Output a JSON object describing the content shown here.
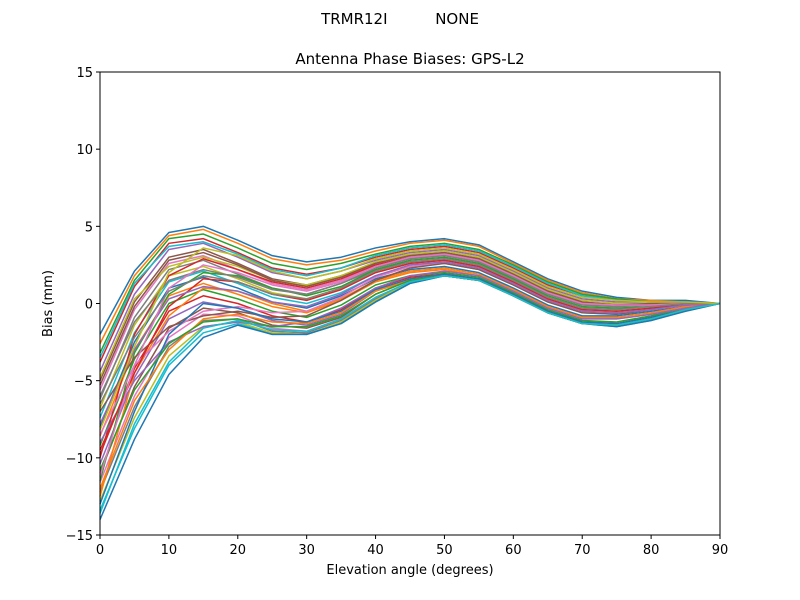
{
  "figure": {
    "suptitle": "TRMR12I          NONE"
  },
  "chart_data": {
    "type": "line",
    "title": "Antenna Phase Biases: GPS-L2",
    "xlabel": "Elevation angle (degrees)",
    "ylabel": "Bias (mm)",
    "xlim": [
      0,
      90
    ],
    "ylim": [
      -15,
      15
    ],
    "xticks": [
      0,
      10,
      20,
      30,
      40,
      50,
      60,
      70,
      80,
      90
    ],
    "yticks": [
      -15,
      -10,
      -5,
      0,
      5,
      10,
      15
    ],
    "xtick_labels": [
      "0",
      "10",
      "20",
      "30",
      "40",
      "50",
      "60",
      "70",
      "80",
      "90"
    ],
    "ytick_labels": [
      "−15",
      "−10",
      "−5",
      "0",
      "5",
      "10",
      "15"
    ],
    "grid": false,
    "legend": "none",
    "x": [
      0,
      5,
      10,
      15,
      20,
      25,
      30,
      35,
      40,
      45,
      50,
      55,
      60,
      65,
      70,
      75,
      80,
      85,
      90
    ],
    "colors": [
      "#1f77b4",
      "#ff7f0e",
      "#2ca02c",
      "#d62728",
      "#9467bd",
      "#8c564b",
      "#e377c2",
      "#7f7f7f",
      "#bcbd22",
      "#17becf"
    ],
    "series": [
      {
        "values": [
          -2.0,
          2.1,
          4.6,
          5.0,
          4.1,
          3.1,
          2.7,
          3.0,
          3.6,
          4.0,
          4.2,
          3.8,
          2.7,
          1.6,
          0.8,
          0.4,
          0.2,
          0.2,
          0.0
        ]
      },
      {
        "values": [
          -2.6,
          1.8,
          4.4,
          4.8,
          3.9,
          2.9,
          2.5,
          2.8,
          3.4,
          3.9,
          4.1,
          3.7,
          2.6,
          1.5,
          0.7,
          0.3,
          0.2,
          0.1,
          0.0
        ]
      },
      {
        "values": [
          -3.2,
          1.5,
          4.2,
          4.5,
          3.6,
          2.6,
          2.2,
          2.6,
          3.2,
          3.7,
          3.9,
          3.5,
          2.5,
          1.4,
          0.6,
          0.3,
          0.1,
          0.1,
          0.0
        ]
      },
      {
        "values": [
          -3.8,
          1.1,
          3.9,
          4.2,
          3.3,
          2.3,
          1.9,
          2.3,
          3.0,
          3.5,
          3.7,
          3.3,
          2.3,
          1.2,
          0.5,
          0.2,
          0.1,
          0.1,
          0.0
        ]
      },
      {
        "values": [
          -4.4,
          0.6,
          3.5,
          3.9,
          3.0,
          2.0,
          1.6,
          2.1,
          2.8,
          3.3,
          3.5,
          3.1,
          2.1,
          1.0,
          0.3,
          0.1,
          0.1,
          0.1,
          0.0
        ]
      },
      {
        "values": [
          -5.0,
          0.1,
          3.0,
          3.5,
          2.6,
          1.6,
          1.2,
          1.8,
          2.6,
          3.1,
          3.3,
          2.9,
          1.9,
          0.8,
          0.1,
          -0.1,
          0.0,
          0.1,
          0.0
        ]
      },
      {
        "values": [
          -5.6,
          -0.4,
          2.6,
          3.1,
          2.2,
          1.3,
          0.9,
          1.5,
          2.4,
          2.9,
          3.1,
          2.7,
          1.7,
          0.6,
          -0.1,
          -0.2,
          -0.1,
          0.0,
          0.0
        ]
      },
      {
        "values": [
          -6.2,
          -0.9,
          2.2,
          2.8,
          1.9,
          1.0,
          0.6,
          1.3,
          2.2,
          2.7,
          2.9,
          2.5,
          1.5,
          0.4,
          -0.3,
          -0.4,
          -0.2,
          0.0,
          0.0
        ]
      },
      {
        "values": [
          -6.8,
          -1.4,
          1.8,
          2.4,
          1.6,
          0.7,
          0.3,
          1.0,
          2.0,
          2.6,
          2.8,
          2.4,
          1.4,
          0.3,
          -0.4,
          -0.5,
          -0.3,
          -0.1,
          0.0
        ]
      },
      {
        "values": [
          -7.4,
          -1.9,
          1.4,
          2.1,
          1.3,
          0.4,
          0.0,
          0.7,
          1.8,
          2.4,
          2.6,
          2.2,
          1.2,
          0.1,
          -0.6,
          -0.7,
          -0.4,
          -0.1,
          0.0
        ]
      },
      {
        "values": [
          -8.0,
          -2.5,
          1.0,
          1.7,
          1.0,
          0.1,
          -0.3,
          0.5,
          1.6,
          2.2,
          2.4,
          2.0,
          1.0,
          -0.1,
          -0.8,
          -0.8,
          -0.5,
          -0.2,
          0.0
        ]
      },
      {
        "values": [
          -8.6,
          -3.0,
          0.5,
          1.3,
          0.6,
          -0.2,
          -0.6,
          0.2,
          1.4,
          2.0,
          2.2,
          1.8,
          0.8,
          -0.3,
          -1.0,
          -1.0,
          -0.7,
          -0.3,
          0.0
        ]
      },
      {
        "values": [
          -9.2,
          -3.6,
          0.0,
          0.9,
          0.3,
          -0.5,
          -0.9,
          -0.1,
          1.2,
          1.8,
          2.0,
          1.7,
          0.7,
          -0.4,
          -1.1,
          -1.2,
          -0.8,
          -0.3,
          0.0
        ]
      },
      {
        "values": [
          -9.8,
          -4.2,
          -0.5,
          0.5,
          0.0,
          -0.8,
          -1.2,
          -0.4,
          1.0,
          1.7,
          1.9,
          1.6,
          0.6,
          -0.5,
          -1.2,
          -1.3,
          -0.9,
          -0.4,
          0.0
        ]
      },
      {
        "values": [
          -10.4,
          -4.8,
          -1.0,
          0.1,
          -0.3,
          -1.1,
          -1.4,
          -0.7,
          0.8,
          1.6,
          1.8,
          1.5,
          0.5,
          -0.6,
          -1.3,
          -1.4,
          -1.0,
          -0.4,
          0.0
        ]
      },
      {
        "values": [
          -11.0,
          -5.4,
          -1.6,
          -0.3,
          -0.6,
          -1.4,
          -1.6,
          -0.9,
          0.6,
          1.5,
          1.8,
          1.5,
          0.5,
          -0.6,
          -1.3,
          -1.4,
          -1.0,
          -0.4,
          0.0
        ]
      },
      {
        "values": [
          -11.6,
          -6.0,
          -2.2,
          -0.7,
          -0.8,
          -1.6,
          -1.8,
          -1.0,
          0.4,
          1.4,
          1.8,
          1.5,
          0.5,
          -0.6,
          -1.3,
          -1.4,
          -1.0,
          -0.4,
          0.0
        ]
      },
      {
        "values": [
          -12.2,
          -6.7,
          -2.8,
          -1.1,
          -1.0,
          -1.8,
          -1.9,
          -1.1,
          0.3,
          1.4,
          1.8,
          1.5,
          0.5,
          -0.6,
          -1.3,
          -1.4,
          -1.0,
          -0.4,
          0.0
        ]
      },
      {
        "values": [
          -12.8,
          -7.4,
          -3.4,
          -1.5,
          -1.2,
          -1.9,
          -2.0,
          -1.2,
          0.2,
          1.4,
          1.8,
          1.5,
          0.5,
          -0.6,
          -1.3,
          -1.4,
          -1.0,
          -0.4,
          0.0
        ]
      },
      {
        "values": [
          -13.4,
          -8.1,
          -4.0,
          -1.9,
          -1.3,
          -2.0,
          -2.0,
          -1.3,
          0.1,
          1.3,
          1.8,
          1.5,
          0.5,
          -0.6,
          -1.3,
          -1.5,
          -1.1,
          -0.4,
          0.0
        ]
      },
      {
        "values": [
          -14.0,
          -8.8,
          -4.6,
          -2.2,
          -1.4,
          -2.0,
          -2.0,
          -1.3,
          0.1,
          1.3,
          1.8,
          1.5,
          0.5,
          -0.6,
          -1.3,
          -1.5,
          -1.1,
          -0.5,
          0.0
        ]
      },
      {
        "values": [
          -12.5,
          -4.5,
          -0.8,
          1.0,
          0.8,
          0.0,
          -0.5,
          0.3,
          1.5,
          2.1,
          2.3,
          1.9,
          0.9,
          -0.2,
          -0.9,
          -0.9,
          -0.6,
          -0.2,
          0.0
        ]
      },
      {
        "values": [
          -11.5,
          -3.2,
          0.6,
          2.0,
          1.8,
          1.0,
          0.5,
          1.1,
          2.2,
          2.8,
          3.0,
          2.6,
          1.6,
          0.5,
          -0.2,
          -0.3,
          -0.2,
          0.0,
          0.0
        ]
      },
      {
        "values": [
          -10.0,
          -2.0,
          1.8,
          2.9,
          2.2,
          1.4,
          1.0,
          1.6,
          2.5,
          3.0,
          3.2,
          2.8,
          1.8,
          0.7,
          0.0,
          -0.1,
          -0.1,
          0.0,
          0.0
        ]
      },
      {
        "values": [
          -9.0,
          -5.0,
          -2.5,
          -1.5,
          -1.2,
          -1.5,
          -1.2,
          -0.3,
          1.0,
          1.8,
          2.1,
          1.8,
          0.8,
          -0.3,
          -1.0,
          -1.0,
          -0.7,
          -0.3,
          0.0
        ]
      },
      {
        "values": [
          -7.0,
          -3.5,
          -1.5,
          -0.8,
          -0.5,
          -0.9,
          -0.8,
          0.2,
          1.5,
          2.3,
          2.6,
          2.2,
          1.2,
          0.1,
          -0.6,
          -0.7,
          -0.4,
          -0.1,
          0.0
        ]
      },
      {
        "values": [
          -8.5,
          -4.0,
          -1.8,
          -0.5,
          -0.2,
          -0.6,
          -0.5,
          0.4,
          1.7,
          2.4,
          2.7,
          2.3,
          1.3,
          0.2,
          -0.5,
          -0.6,
          -0.4,
          -0.1,
          0.0
        ]
      },
      {
        "values": [
          -6.0,
          -1.2,
          1.5,
          2.2,
          1.7,
          0.9,
          0.6,
          1.3,
          2.3,
          2.9,
          3.1,
          2.7,
          1.7,
          0.6,
          -0.1,
          -0.2,
          -0.1,
          0.0,
          0.0
        ]
      },
      {
        "values": [
          -4.8,
          0.3,
          2.4,
          3.0,
          2.4,
          1.5,
          1.2,
          1.8,
          2.7,
          3.2,
          3.4,
          3.0,
          2.0,
          0.9,
          0.2,
          0.0,
          0.0,
          0.1,
          0.0
        ]
      },
      {
        "values": [
          -3.5,
          1.3,
          3.7,
          4.0,
          3.2,
          2.2,
          1.8,
          2.3,
          3.1,
          3.6,
          3.8,
          3.4,
          2.4,
          1.3,
          0.5,
          0.2,
          0.1,
          0.1,
          0.0
        ]
      },
      {
        "values": [
          -13.0,
          -7.0,
          -2.0,
          0.0,
          -0.3,
          -1.0,
          -1.2,
          -0.5,
          0.9,
          1.6,
          1.9,
          1.6,
          0.6,
          -0.5,
          -1.2,
          -1.3,
          -0.9,
          -0.4,
          0.0
        ]
      },
      {
        "values": [
          -12.0,
          -6.3,
          -3.0,
          -1.0,
          -0.7,
          -1.2,
          -1.3,
          -0.6,
          0.8,
          1.5,
          1.8,
          1.5,
          0.5,
          -0.6,
          -1.3,
          -1.4,
          -1.0,
          -0.4,
          0.0
        ]
      },
      {
        "values": [
          -10.8,
          -5.6,
          -2.6,
          -1.2,
          -1.0,
          -1.5,
          -1.5,
          -0.8,
          0.6,
          1.5,
          1.8,
          1.5,
          0.5,
          -0.6,
          -1.3,
          -1.4,
          -1.0,
          -0.4,
          0.0
        ]
      },
      {
        "values": [
          -9.5,
          -4.5,
          -0.2,
          1.6,
          1.4,
          0.6,
          0.2,
          0.9,
          2.0,
          2.6,
          2.8,
          2.4,
          1.4,
          0.3,
          -0.4,
          -0.5,
          -0.3,
          -0.1,
          0.0
        ]
      },
      {
        "values": [
          -7.8,
          -3.0,
          0.3,
          1.1,
          0.8,
          0.1,
          -0.2,
          0.6,
          1.8,
          2.5,
          2.7,
          2.3,
          1.3,
          0.2,
          -0.5,
          -0.6,
          -0.4,
          -0.1,
          0.0
        ]
      },
      {
        "values": [
          -5.3,
          -0.2,
          2.8,
          3.3,
          2.5,
          1.5,
          1.1,
          1.7,
          2.6,
          3.1,
          3.3,
          2.9,
          1.9,
          0.8,
          0.1,
          -0.1,
          0.0,
          0.1,
          0.0
        ]
      },
      {
        "values": [
          -11.2,
          -4.0,
          1.0,
          2.5,
          2.0,
          1.2,
          0.8,
          1.4,
          2.4,
          3.0,
          3.2,
          2.8,
          1.8,
          0.7,
          0.0,
          -0.1,
          -0.1,
          0.0,
          0.0
        ]
      },
      {
        "values": [
          -6.5,
          -2.2,
          0.8,
          1.8,
          1.4,
          0.6,
          0.3,
          1.0,
          2.1,
          2.7,
          2.9,
          2.5,
          1.5,
          0.4,
          -0.3,
          -0.4,
          -0.2,
          0.0,
          0.0
        ]
      },
      {
        "values": [
          -8.2,
          -2.8,
          2.0,
          3.6,
          3.1,
          2.1,
          1.6,
          2.1,
          2.9,
          3.4,
          3.6,
          3.2,
          2.2,
          1.1,
          0.4,
          0.2,
          0.1,
          0.1,
          0.0
        ]
      },
      {
        "values": [
          -13.6,
          -7.8,
          -3.8,
          -1.6,
          -1.1,
          -1.7,
          -1.8,
          -1.0,
          0.4,
          1.4,
          1.8,
          1.5,
          0.5,
          -0.6,
          -1.3,
          -1.4,
          -1.0,
          -0.4,
          0.0
        ]
      }
    ]
  }
}
